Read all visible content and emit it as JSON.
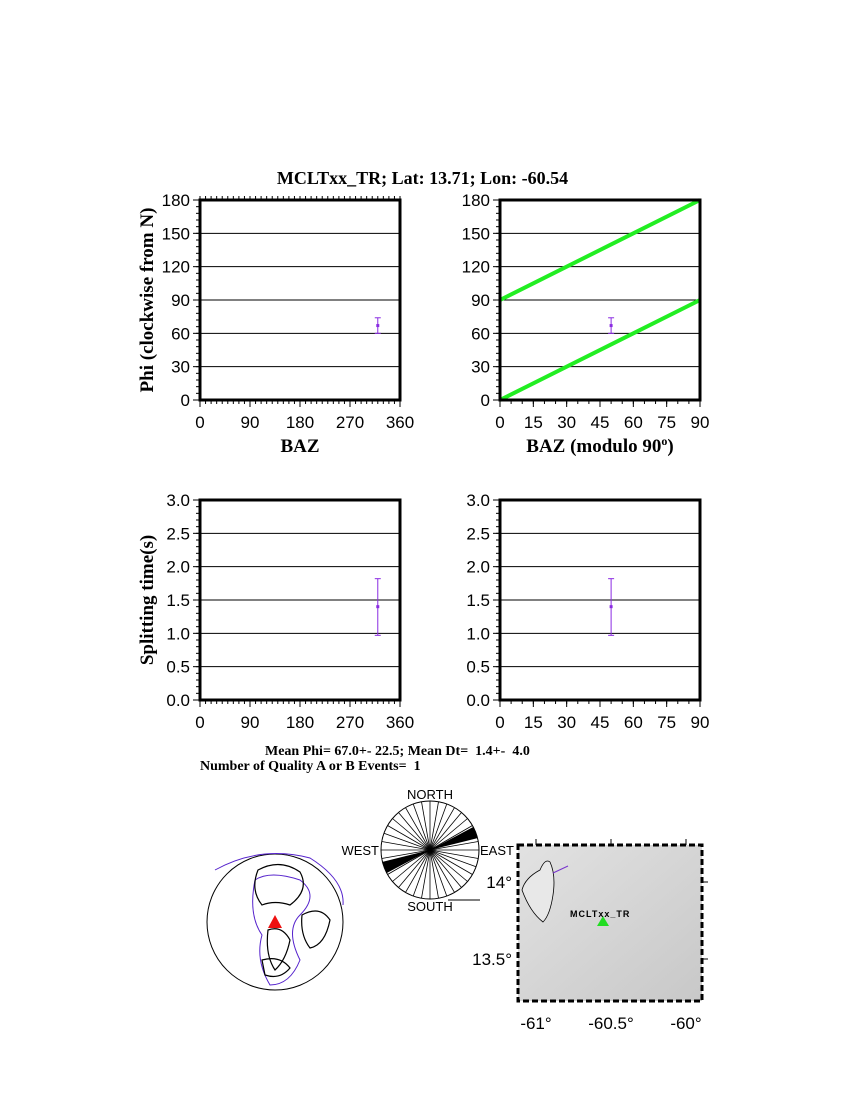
{
  "title": "MCLTxx_TR; Lat:  13.71;  Lon:  -60.54",
  "chart_data": [
    {
      "type": "scatter",
      "ylabel": "Phi (clockwise from N)",
      "xlabel": "BAZ",
      "xlim": [
        0,
        360
      ],
      "ylim": [
        0,
        180
      ],
      "xticks": [
        "0",
        "90",
        "180",
        "270",
        "360"
      ],
      "yticks": [
        "0",
        "30",
        "60",
        "90",
        "120",
        "150",
        "180"
      ],
      "grid": true,
      "points": [
        {
          "x": 320,
          "y": 67,
          "ylow": 60,
          "yhigh": 74
        }
      ],
      "color": "#8a2be2"
    },
    {
      "type": "scatter",
      "ylabel": "",
      "xlabel": "BAZ (modulo 90",
      "xlabel_sup": "o",
      "xlabel_end": ")",
      "xlim": [
        0,
        90
      ],
      "ylim": [
        0,
        180
      ],
      "xticks": [
        "0",
        "15",
        "30",
        "45",
        "60",
        "75",
        "90"
      ],
      "yticks": [
        "0",
        "30",
        "60",
        "90",
        "120",
        "150",
        "180"
      ],
      "grid": true,
      "points": [
        {
          "x": 50,
          "y": 67,
          "ylow": 60,
          "yhigh": 74
        }
      ],
      "lines": [
        {
          "x": [
            0,
            90
          ],
          "y": [
            0,
            90
          ]
        },
        {
          "x": [
            0,
            90
          ],
          "y": [
            90,
            180
          ]
        }
      ],
      "line_color": "#22ee22",
      "color": "#8a2be2"
    },
    {
      "type": "scatter",
      "ylabel": "Splitting time(s)",
      "xlabel": "",
      "xlim": [
        0,
        360
      ],
      "ylim": [
        0,
        3
      ],
      "xticks": [
        "0",
        "90",
        "180",
        "270",
        "360"
      ],
      "yticks": [
        "0.0",
        "0.5",
        "1.0",
        "1.5",
        "2.0",
        "2.5",
        "3.0"
      ],
      "grid": true,
      "points": [
        {
          "x": 320,
          "y": 1.4,
          "ylow": 0.97,
          "yhigh": 1.82
        }
      ],
      "color": "#8a2be2"
    },
    {
      "type": "scatter",
      "ylabel": "",
      "xlabel": "",
      "xlim": [
        0,
        90
      ],
      "ylim": [
        0,
        3
      ],
      "xticks": [
        "0",
        "15",
        "30",
        "45",
        "60",
        "75",
        "90"
      ],
      "yticks": [
        "0.0",
        "0.5",
        "1.0",
        "1.5",
        "2.0",
        "2.5",
        "3.0"
      ],
      "grid": true,
      "points": [
        {
          "x": 50,
          "y": 1.4,
          "ylow": 0.97,
          "yhigh": 1.82
        }
      ],
      "color": "#8a2be2"
    }
  ],
  "stats": {
    "line1": "Mean Phi= 67.0+- 22.5; Mean Dt=  1.4+-  4.0",
    "line2": "Number of Quality A or B Events=  1"
  },
  "rose": {
    "north": "NORTH",
    "south": "SOUTH",
    "east": "EAST",
    "west": "WEST",
    "filled_sector_deg": [
      62,
      76
    ]
  },
  "map": {
    "station_label": "MCLTxx_TR",
    "station_color": "#22dd22",
    "globe_marker_color": "#ee1111",
    "lat_ticks": [
      "14",
      "13.5"
    ],
    "lon_ticks": [
      "-61",
      "-60.5",
      "-60"
    ],
    "degree": "°"
  }
}
